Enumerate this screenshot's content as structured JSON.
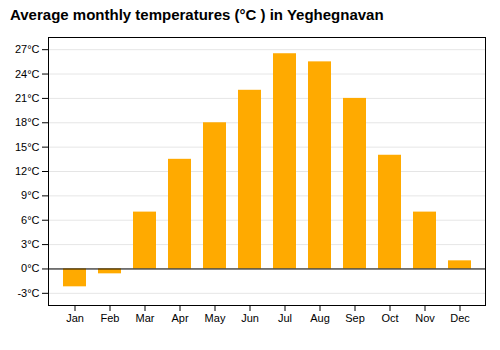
{
  "chart_data": {
    "type": "bar",
    "title": "Average monthly temperatures (°C ) in Yeghegnavan",
    "categories": [
      "Jan",
      "Feb",
      "Mar",
      "Apr",
      "May",
      "Jun",
      "Jul",
      "Aug",
      "Sep",
      "Oct",
      "Nov",
      "Dec"
    ],
    "values": [
      -2.2,
      -0.6,
      7.0,
      13.5,
      18.0,
      22.0,
      26.5,
      25.5,
      21.0,
      14.0,
      7.0,
      1.0
    ],
    "color": "#FFAA00",
    "ylim": [
      -4.5,
      28.5
    ],
    "yticks": [
      {
        "value": -3,
        "label": "-3°C"
      },
      {
        "value": 0,
        "label": "0°C"
      },
      {
        "value": 3,
        "label": "3°C"
      },
      {
        "value": 6,
        "label": "6°C"
      },
      {
        "value": 9,
        "label": "9°C"
      },
      {
        "value": 12,
        "label": "12°C"
      },
      {
        "value": 15,
        "label": "15°C"
      },
      {
        "value": 18,
        "label": "18°C"
      },
      {
        "value": 21,
        "label": "21°C"
      },
      {
        "value": 24,
        "label": "24°C"
      },
      {
        "value": 27,
        "label": "27°C"
      }
    ],
    "grid": true
  }
}
